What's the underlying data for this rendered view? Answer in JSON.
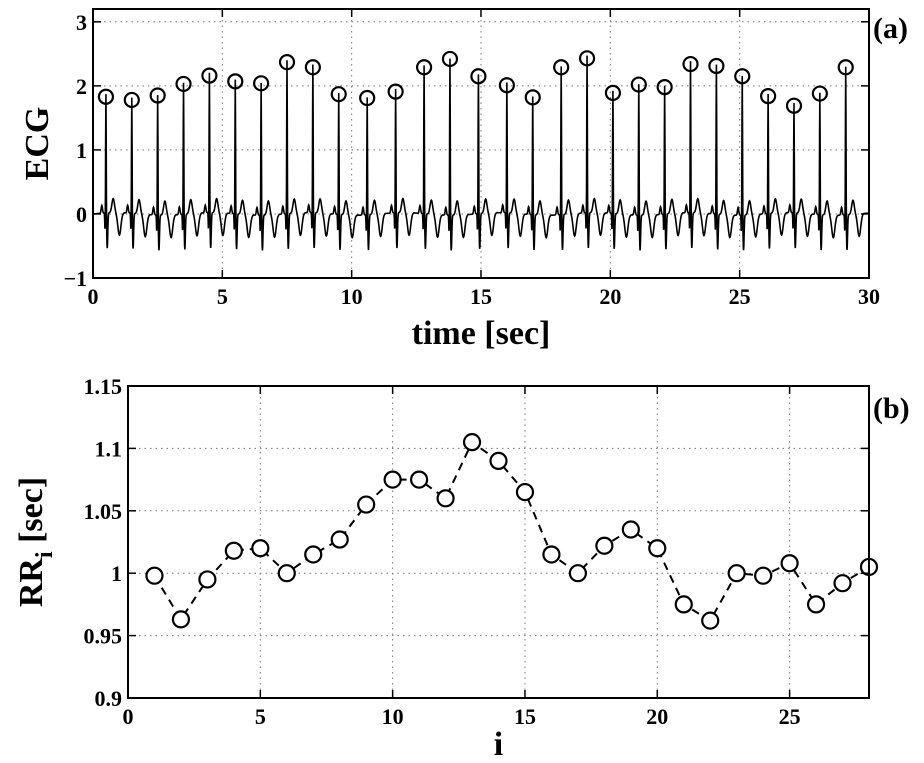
{
  "chart_data": [
    {
      "type": "line",
      "panel_label": "(a)",
      "xlabel": "time [sec]",
      "ylabel": "ECG",
      "xlim": [
        0,
        30
      ],
      "ylim": [
        -1,
        3.2
      ],
      "xticks": [
        0,
        5,
        10,
        15,
        20,
        25,
        30
      ],
      "xtick_labels": [
        "0",
        "5",
        "10",
        "15",
        "20",
        "25",
        "30"
      ],
      "yticks": [
        -1,
        0,
        1,
        2,
        3
      ],
      "ytick_labels": [
        "−1",
        "0",
        "1",
        "2",
        "3"
      ],
      "grid": true,
      "line_color": "#000000",
      "r_peaks": {
        "marker": "circle",
        "x": [
          0.5,
          1.5,
          2.5,
          3.5,
          4.5,
          5.5,
          6.5,
          7.5,
          8.5,
          9.5,
          10.6,
          11.7,
          12.8,
          13.8,
          14.9,
          16.0,
          17.0,
          18.1,
          19.1,
          20.1,
          21.1,
          22.1,
          23.1,
          24.1,
          25.1,
          26.1,
          27.1,
          28.1,
          29.1
        ],
        "y": [
          1.83,
          1.78,
          1.85,
          2.03,
          2.16,
          2.07,
          2.04,
          2.37,
          2.29,
          1.87,
          1.81,
          1.91,
          2.29,
          2.42,
          2.15,
          2.01,
          1.82,
          2.29,
          2.43,
          1.89,
          2.02,
          1.98,
          2.34,
          2.31,
          2.15,
          1.84,
          1.69,
          1.88,
          2.29
        ]
      }
    },
    {
      "type": "line",
      "panel_label": "(b)",
      "xlabel": "i",
      "ylabel": "RR",
      "ylabel_sub": "i",
      "ylabel_unit": " [sec]",
      "xlim": [
        0,
        28
      ],
      "ylim": [
        0.9,
        1.15
      ],
      "xticks": [
        0,
        5,
        10,
        15,
        20,
        25
      ],
      "xtick_labels": [
        "0",
        "5",
        "10",
        "15",
        "20",
        "25"
      ],
      "yticks": [
        0.9,
        0.95,
        1.0,
        1.05,
        1.1,
        1.15
      ],
      "ytick_labels": [
        "0.9",
        "0.95",
        "1",
        "1.05",
        "1.1",
        "1.15"
      ],
      "grid": true,
      "line_style": "dashed",
      "marker": "circle",
      "x": [
        1,
        2,
        3,
        4,
        5,
        6,
        7,
        8,
        9,
        10,
        11,
        12,
        13,
        14,
        15,
        16,
        17,
        18,
        19,
        20,
        21,
        22,
        23,
        24,
        25,
        26,
        27,
        28
      ],
      "y": [
        0.998,
        0.963,
        0.995,
        1.018,
        1.02,
        1.0,
        1.015,
        1.027,
        1.055,
        1.075,
        1.075,
        1.06,
        1.105,
        1.09,
        1.065,
        1.015,
        1.0,
        1.022,
        1.035,
        1.02,
        0.975,
        0.962,
        1.0,
        0.998,
        1.008,
        0.975,
        0.992,
        1.005
      ]
    }
  ]
}
